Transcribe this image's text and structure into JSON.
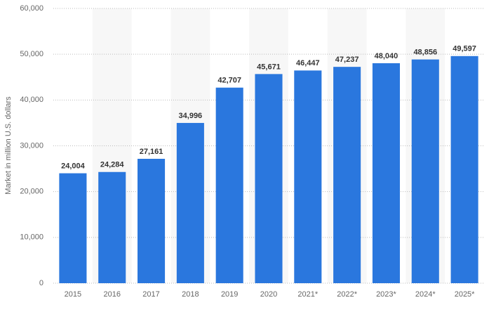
{
  "chart_data": {
    "type": "bar",
    "y_label": "Market in million U.S. dollars",
    "categories": [
      "2015",
      "2016",
      "2017",
      "2018",
      "2019",
      "2020",
      "2021*",
      "2022*",
      "2023*",
      "2024*",
      "2025*"
    ],
    "values": [
      24004,
      24284,
      27161,
      34996,
      42707,
      45671,
      46447,
      47237,
      48040,
      48856,
      49597
    ],
    "value_labels": [
      "24,004",
      "24,284",
      "27,161",
      "34,996",
      "42,707",
      "45,671",
      "46,447",
      "47,237",
      "48,040",
      "48,856",
      "49,597"
    ],
    "color": "#2a77de",
    "ylim": [
      0,
      60000
    ],
    "yticks": [
      0,
      {
        "value": 10000,
        "label": "10,000"
      },
      {
        "value": 20000,
        "label": "20,000"
      },
      {
        "value": 30000,
        "label": "30,000"
      },
      {
        "value": 40000,
        "label": "40,000"
      },
      {
        "value": 50000,
        "label": "50,000"
      },
      {
        "value": 60000,
        "label": "60,000"
      }
    ],
    "grid": true
  }
}
